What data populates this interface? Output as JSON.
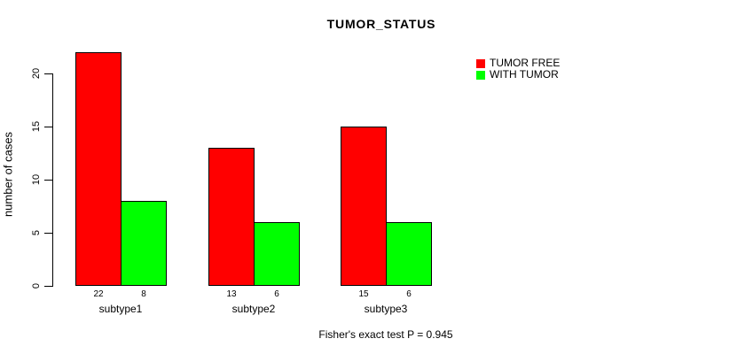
{
  "chart_data": {
    "type": "bar",
    "title": "TUMOR_STATUS",
    "ylabel": "number of cases",
    "xlabel": "",
    "categories": [
      "subtype1",
      "subtype2",
      "subtype3"
    ],
    "series": [
      {
        "name": "TUMOR FREE",
        "color": "#FF0000",
        "values": [
          22,
          13,
          15
        ]
      },
      {
        "name": "WITH TUMOR",
        "color": "#00FF00",
        "values": [
          8,
          6,
          6
        ]
      }
    ],
    "bar_value_labels": [
      [
        "22",
        "8"
      ],
      [
        "13",
        "6"
      ],
      [
        "15",
        "6"
      ]
    ],
    "yticks": [
      0,
      5,
      10,
      15,
      20
    ],
    "ylim": [
      0,
      22
    ],
    "grid": false,
    "legend_position": "top-right",
    "annotation": "Fisher's exact test P = 0.945",
    "colors": {
      "background": "#FFFFFF",
      "axis": "#000000",
      "text": "#000000"
    }
  }
}
